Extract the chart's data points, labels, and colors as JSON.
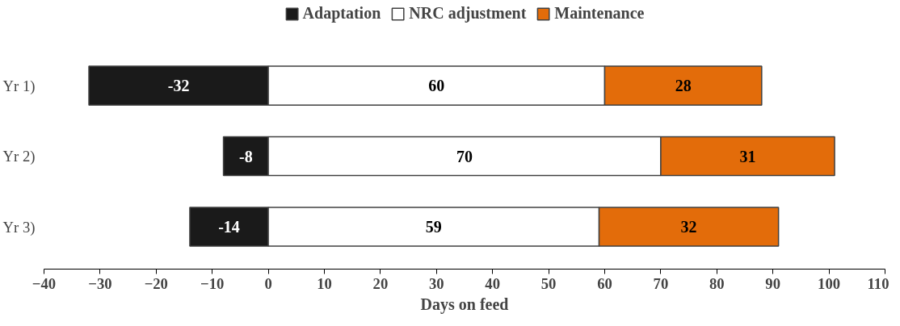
{
  "chart_data": {
    "type": "bar",
    "orientation": "horizontal",
    "stacked": true,
    "xlabel": "Days on feed",
    "categories": [
      "Yr 1)",
      "Yr 2)",
      "Yr 3)"
    ],
    "series": [
      {
        "name": "Adaptation",
        "color": "#1a1a1a",
        "values": [
          -32,
          -8,
          -14
        ]
      },
      {
        "name": "NRC adjustment",
        "color": "#ffffff",
        "values": [
          60,
          70,
          59
        ]
      },
      {
        "name": "Maintenance",
        "color": "#e36c0a",
        "values": [
          28,
          31,
          32
        ]
      }
    ],
    "xlim": [
      -40,
      110
    ],
    "xticks": [
      -40,
      -30,
      -20,
      -10,
      0,
      10,
      20,
      30,
      40,
      50,
      60,
      70,
      80,
      90,
      100,
      110
    ],
    "data_labels": true,
    "legend": "top",
    "grid": false
  }
}
